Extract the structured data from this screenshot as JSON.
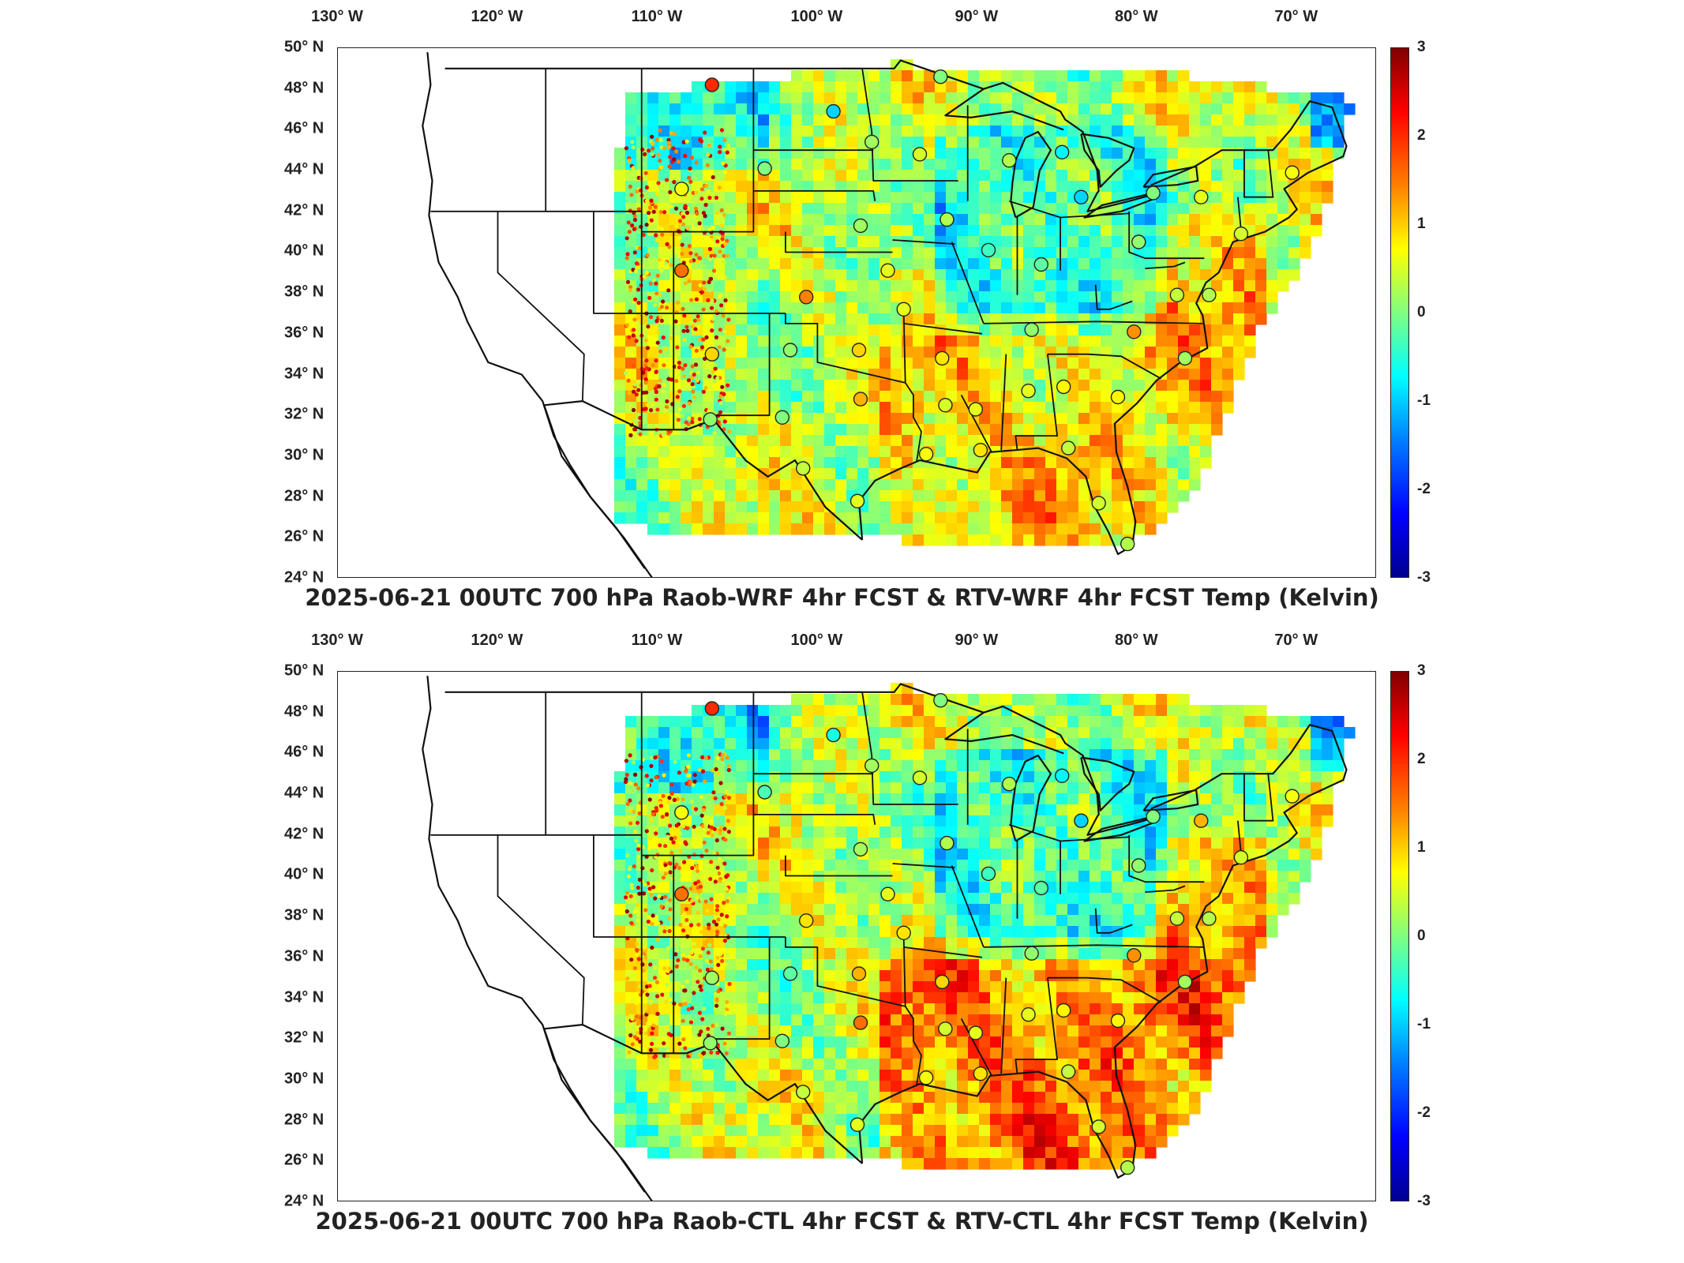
{
  "figure": {
    "longitude_labels": [
      "130° W",
      "120° W",
      "110° W",
      "100° W",
      "90° W",
      "80° W",
      "70° W"
    ],
    "latitude_labels": [
      "50° N",
      "48° N",
      "46° N",
      "44° N",
      "42° N",
      "40° N",
      "38° N",
      "36° N",
      "34° N",
      "32° N",
      "30° N",
      "28° N",
      "26° N",
      "24° N"
    ],
    "colorbar": {
      "ticks": [
        "3",
        "2",
        "1",
        "0",
        "-1",
        "-2",
        "-3"
      ],
      "min": -3,
      "max": 3,
      "colormap": "jet"
    }
  },
  "panels": [
    {
      "title": "2025-06-21 00UTC 700 hPa Raob-WRF 4hr FCST & RTV-WRF 4hr FCST Temp (Kelvin)"
    },
    {
      "title": "2025-06-21 00UTC 700 hPa Raob-CTL 4hr FCST & RTV-CTL 4hr FCST Temp (Kelvin)"
    }
  ],
  "map_extent": {
    "lon_min": -130,
    "lon_max": -65,
    "lat_min": 24,
    "lat_max": 50
  },
  "raob_stations": [
    {
      "lon": -106.6,
      "lat": 48.2,
      "v_top": 2.0,
      "v_bot": 2.0
    },
    {
      "lon": -99.0,
      "lat": 46.9,
      "v_top": -1.0,
      "v_bot": -0.6
    },
    {
      "lon": -96.6,
      "lat": 45.4,
      "v_top": 0.2,
      "v_bot": 0.2
    },
    {
      "lon": -93.6,
      "lat": 44.8,
      "v_top": 0.5,
      "v_bot": 0.5
    },
    {
      "lon": -92.3,
      "lat": 48.6,
      "v_top": 0.0,
      "v_bot": 0.0
    },
    {
      "lon": -88.0,
      "lat": 44.5,
      "v_top": 0.3,
      "v_bot": 0.3
    },
    {
      "lon": -84.7,
      "lat": 44.9,
      "v_top": -0.8,
      "v_bot": -0.8
    },
    {
      "lon": -83.5,
      "lat": 42.7,
      "v_top": -1.0,
      "v_bot": -1.0
    },
    {
      "lon": -79.0,
      "lat": 42.9,
      "v_top": 0.0,
      "v_bot": 0.0
    },
    {
      "lon": -76.0,
      "lat": 42.7,
      "v_top": 0.6,
      "v_bot": 1.2
    },
    {
      "lon": -73.5,
      "lat": 40.9,
      "v_top": 0.5,
      "v_bot": 0.5
    },
    {
      "lon": -70.3,
      "lat": 43.9,
      "v_top": 0.7,
      "v_bot": 0.7
    },
    {
      "lon": -103.3,
      "lat": 44.1,
      "v_top": 0.0,
      "v_bot": -0.3
    },
    {
      "lon": -108.5,
      "lat": 43.1,
      "v_top": 0.7,
      "v_bot": 0.7
    },
    {
      "lon": -97.3,
      "lat": 41.3,
      "v_top": 0.2,
      "v_bot": 0.2
    },
    {
      "lon": -91.9,
      "lat": 41.6,
      "v_top": 0.3,
      "v_bot": 0.3
    },
    {
      "lon": -89.3,
      "lat": 40.1,
      "v_top": -0.4,
      "v_bot": -0.4
    },
    {
      "lon": -86.0,
      "lat": 39.4,
      "v_top": -0.2,
      "v_bot": -0.2
    },
    {
      "lon": -79.9,
      "lat": 40.5,
      "v_top": 0.1,
      "v_bot": 0.1
    },
    {
      "lon": -77.5,
      "lat": 37.9,
      "v_top": 0.4,
      "v_bot": 0.4
    },
    {
      "lon": -95.6,
      "lat": 39.1,
      "v_top": 0.6,
      "v_bot": 0.6
    },
    {
      "lon": -100.7,
      "lat": 37.8,
      "v_top": 1.5,
      "v_bot": 0.9
    },
    {
      "lon": -108.5,
      "lat": 39.1,
      "v_top": 1.6,
      "v_bot": 1.6
    },
    {
      "lon": -106.6,
      "lat": 35.0,
      "v_top": 1.0,
      "v_bot": 0.2
    },
    {
      "lon": -101.7,
      "lat": 35.2,
      "v_top": 0.1,
      "v_bot": -0.2
    },
    {
      "lon": -97.4,
      "lat": 35.2,
      "v_top": 1.0,
      "v_bot": 1.2
    },
    {
      "lon": -94.6,
      "lat": 37.2,
      "v_top": 0.6,
      "v_bot": 0.9
    },
    {
      "lon": -92.2,
      "lat": 34.8,
      "v_top": 0.9,
      "v_bot": 1.0
    },
    {
      "lon": -86.6,
      "lat": 36.2,
      "v_top": 0.1,
      "v_bot": 0.1
    },
    {
      "lon": -80.2,
      "lat": 36.1,
      "v_top": 1.4,
      "v_bot": 1.4
    },
    {
      "lon": -75.5,
      "lat": 37.9,
      "v_top": 0.3,
      "v_bot": 0.3
    },
    {
      "lon": -77.0,
      "lat": 34.8,
      "v_top": 0.2,
      "v_bot": 0.2
    },
    {
      "lon": -81.2,
      "lat": 32.9,
      "v_top": 0.8,
      "v_bot": 0.8
    },
    {
      "lon": -84.6,
      "lat": 33.4,
      "v_top": 0.8,
      "v_bot": 0.8
    },
    {
      "lon": -86.8,
      "lat": 33.2,
      "v_top": 0.6,
      "v_bot": 0.6
    },
    {
      "lon": -90.1,
      "lat": 32.3,
      "v_top": 0.6,
      "v_bot": 0.6
    },
    {
      "lon": -92.0,
      "lat": 32.5,
      "v_top": 0.5,
      "v_bot": 0.5
    },
    {
      "lon": -97.3,
      "lat": 32.8,
      "v_top": 1.2,
      "v_bot": 1.6
    },
    {
      "lon": -102.2,
      "lat": 31.9,
      "v_top": 0.0,
      "v_bot": 0.0
    },
    {
      "lon": -106.7,
      "lat": 31.8,
      "v_top": 0.1,
      "v_bot": 0.1
    },
    {
      "lon": -100.9,
      "lat": 29.4,
      "v_top": 0.4,
      "v_bot": 0.4
    },
    {
      "lon": -97.5,
      "lat": 27.8,
      "v_top": 0.6,
      "v_bot": 0.6
    },
    {
      "lon": -93.2,
      "lat": 30.1,
      "v_top": 0.7,
      "v_bot": 0.7
    },
    {
      "lon": -89.8,
      "lat": 30.3,
      "v_top": 0.9,
      "v_bot": 0.9
    },
    {
      "lon": -84.3,
      "lat": 30.4,
      "v_top": 0.4,
      "v_bot": 0.4
    },
    {
      "lon": -82.4,
      "lat": 27.7,
      "v_top": 0.5,
      "v_bot": 0.5
    },
    {
      "lon": -80.6,
      "lat": 25.7,
      "v_top": 0.3,
      "v_bot": 0.3
    }
  ]
}
